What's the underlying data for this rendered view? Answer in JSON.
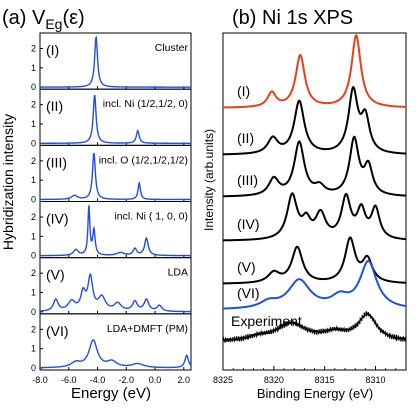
{
  "chart_data": [
    {
      "type": "line",
      "title": "(a) V",
      "title_sub": "Eg",
      "title_paren": "(ε)",
      "xlabel": "Energy (eV)",
      "ylabel": "Hybridization intensity",
      "xlim": [
        -8.0,
        2.5
      ],
      "x_ticks": [
        "-8.0",
        "-6.0",
        "-4.0",
        "-2.0",
        "0.0",
        "2.0"
      ],
      "x_tick_values": [
        -8,
        -6,
        -4,
        -2,
        0,
        2
      ],
      "panel_ylim": [
        0,
        2.7
      ],
      "y_ticks": [
        "0",
        "1",
        "2"
      ],
      "line_color": "#1f4fe0",
      "panels": [
        {
          "id": "I",
          "label": "(I)",
          "annotation": "Cluster",
          "peaks": [
            [
              -4.1,
              2.6,
              0.12
            ]
          ]
        },
        {
          "id": "II",
          "label": "(II)",
          "annotation": "incl. Ni (1/2,1/2, 0)",
          "peaks": [
            [
              -4.2,
              2.5,
              0.12
            ],
            [
              -1.2,
              0.65,
              0.12
            ]
          ]
        },
        {
          "id": "III",
          "label": "(III)",
          "annotation": "incl. O (1/2,1/2,1/2)",
          "peaks": [
            [
              -4.25,
              2.4,
              0.12
            ],
            [
              -1.1,
              0.85,
              0.1
            ],
            [
              -5.6,
              0.2,
              0.25
            ]
          ]
        },
        {
          "id": "IV",
          "label": "(IV)",
          "annotation": "incl. Ni ( 1, 0, 0)",
          "peaks": [
            [
              -4.6,
              2.5,
              0.08
            ],
            [
              -4.25,
              1.3,
              0.1
            ],
            [
              -0.6,
              0.9,
              0.15
            ],
            [
              -5.5,
              0.3,
              0.2
            ],
            [
              -1.4,
              0.35,
              0.15
            ],
            [
              -2.4,
              0.15,
              0.3
            ]
          ]
        },
        {
          "id": "V",
          "label": "(V)",
          "annotation": "LDA",
          "peaks": [
            [
              -4.5,
              1.7,
              0.2
            ],
            [
              -5.0,
              0.9,
              0.2
            ],
            [
              -3.7,
              0.7,
              0.3
            ],
            [
              -6.9,
              0.6,
              0.2
            ],
            [
              -5.8,
              0.5,
              0.3
            ],
            [
              -2.6,
              0.4,
              0.3
            ],
            [
              -1.4,
              0.5,
              0.2
            ],
            [
              -0.6,
              0.6,
              0.2
            ],
            [
              0.3,
              0.3,
              0.2
            ]
          ]
        },
        {
          "id": "VI",
          "label": "(VI)",
          "annotation": "LDA+DMFT (PM)",
          "peaks": [
            [
              -4.3,
              1.4,
              0.35
            ],
            [
              -5.5,
              0.25,
              0.4
            ],
            [
              -3.0,
              0.3,
              0.4
            ],
            [
              -1.2,
              0.2,
              0.5
            ],
            [
              2.2,
              0.65,
              0.15
            ]
          ]
        }
      ]
    },
    {
      "type": "line",
      "title": "(b) Ni 1s XPS",
      "xlabel": "Binding Energy (eV)",
      "ylabel": "Intensity (arb.units)",
      "xlim": [
        8325,
        8307
      ],
      "x_ticks": [
        "8325",
        "8320",
        "8315",
        "8310"
      ],
      "x_tick_values": [
        8325,
        8320,
        8315,
        8310
      ],
      "series": [
        {
          "label": "(I)",
          "color": "#e8401c",
          "peaks": [
            [
              8311.9,
              1.0,
              0.55
            ],
            [
              8317.4,
              0.72,
              0.55
            ],
            [
              8320.2,
              0.2,
              0.5
            ]
          ]
        },
        {
          "label": "(II)",
          "color": "#000000",
          "peaks": [
            [
              8312.2,
              1.0,
              0.55
            ],
            [
              8317.5,
              0.85,
              0.6
            ],
            [
              8311.0,
              0.55,
              0.5
            ],
            [
              8320.1,
              0.25,
              0.6
            ]
          ]
        },
        {
          "label": "(III)",
          "color": "#000000",
          "peaks": [
            [
              8312.1,
              1.0,
              0.55
            ],
            [
              8317.5,
              0.95,
              0.6
            ],
            [
              8310.7,
              0.5,
              0.5
            ],
            [
              8320.0,
              0.3,
              0.6
            ],
            [
              8315.5,
              0.15,
              0.6
            ]
          ]
        },
        {
          "label": "(IV)",
          "color": "#000000",
          "peaks": [
            [
              8312.9,
              0.75,
              0.55
            ],
            [
              8318.2,
              0.8,
              0.6
            ],
            [
              8310.0,
              0.55,
              0.5
            ],
            [
              8315.4,
              0.45,
              0.6
            ],
            [
              8316.8,
              0.3,
              0.5
            ],
            [
              8311.4,
              0.5,
              0.5
            ]
          ]
        },
        {
          "label": "(V)",
          "color": "#000000",
          "peaks": [
            [
              8312.5,
              0.85,
              0.6
            ],
            [
              8317.7,
              0.7,
              0.65
            ],
            [
              8310.8,
              0.45,
              0.6
            ],
            [
              8320.0,
              0.2,
              0.7
            ]
          ]
        },
        {
          "label": "(VI)",
          "color": "#1f4fe0",
          "peaks": [
            [
              8310.7,
              0.9,
              1.0
            ],
            [
              8317.5,
              0.55,
              1.3
            ],
            [
              8313.5,
              0.2,
              1.0
            ],
            [
              8320.5,
              0.12,
              1.0
            ]
          ]
        },
        {
          "label": "Experiment",
          "color": "#000000",
          "peaks": [
            [
              8310.8,
              0.62,
              1.1
            ],
            [
              8318.3,
              0.42,
              1.8
            ],
            [
              8314.0,
              0.18,
              1.4
            ],
            [
              8321.5,
              0.08,
              1.2
            ]
          ]
        }
      ]
    }
  ]
}
